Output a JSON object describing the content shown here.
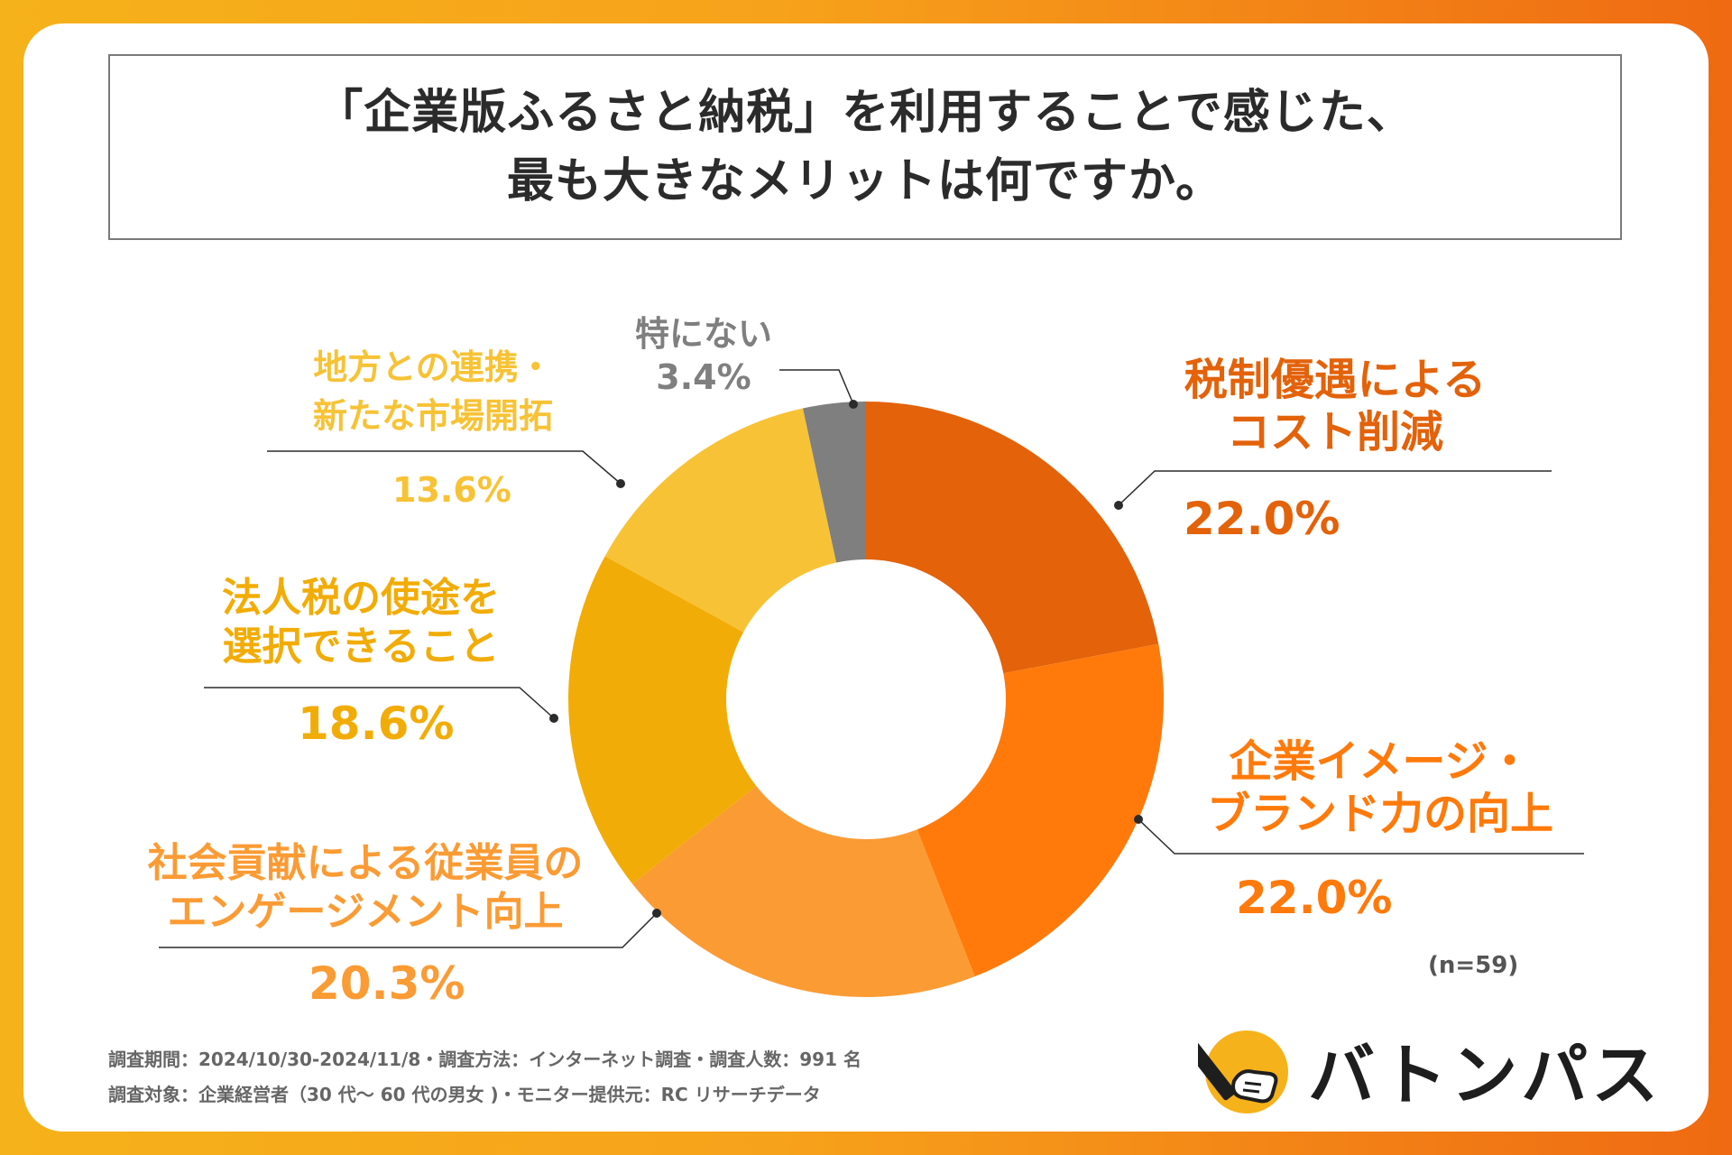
{
  "title": {
    "line1": "「企業版ふるさと納税」を利用することで感じた、",
    "line2": "最も大きなメリットは何ですか。"
  },
  "chart_data": {
    "type": "pie",
    "variant": "donut",
    "title": "「企業版ふるさと納税」を利用することで感じた、最も大きなメリットは何ですか。",
    "unit": "%",
    "slices": [
      {
        "line1": "税制優遇による",
        "line2": "コスト削減",
        "value": 22.0,
        "label": "22.0%",
        "color": "#e3620a"
      },
      {
        "line1": "企業イメージ・",
        "line2": "ブランド力の向上",
        "value": 22.0,
        "label": "22.0%",
        "color": "#ff7a0b"
      },
      {
        "line1": "社会貢献による従業員の",
        "line2": "エンゲージメント向上",
        "value": 20.3,
        "label": "20.3%",
        "color": "#fb9b34"
      },
      {
        "line1": "法人税の使途を",
        "line2": "選択できること",
        "value": 18.6,
        "label": "18.6%",
        "color": "#f2ac07"
      },
      {
        "line1": "地方との連携・",
        "line2": "新たな市場開拓",
        "value": 13.6,
        "label": "13.6%",
        "color": "#f7c235"
      },
      {
        "line1": "特にない",
        "line2": "",
        "value": 3.4,
        "label": "3.4%",
        "color": "#7f7f7f"
      }
    ],
    "sample_size": "(n=59)"
  },
  "notes": {
    "line1": "調査期間：2024/10/30-2024/11/8・調査方法：インターネット調査・調査人数：991 名",
    "line2": "調査対象：企業経営者（30 代〜 60 代の男女 )・モニター提供元：RC リサーチデータ"
  },
  "logo": {
    "text": "バトンパス",
    "icon": "baton-hand-icon",
    "circle_color": "#f6b21a"
  },
  "colors": {
    "border": "#7a7a7a",
    "title": "#2b2b2b"
  }
}
